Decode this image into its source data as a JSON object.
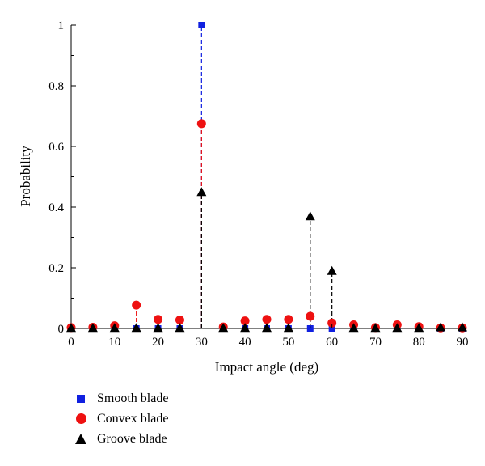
{
  "chart_data": {
    "type": "scatter",
    "xlabel": "Impact angle (deg)",
    "ylabel": "Probability",
    "xlim": [
      0,
      90
    ],
    "ylim": [
      0,
      1
    ],
    "x_ticks": [
      "0",
      "10",
      "20",
      "30",
      "40",
      "50",
      "60",
      "70",
      "80",
      "90"
    ],
    "y_ticks": [
      "0",
      "0.2",
      "0.4",
      "0.6",
      "0.8",
      "1"
    ],
    "grid": false,
    "legend_position": "bottom-left, below plot",
    "series": [
      {
        "name": "Smooth blade",
        "marker": "square",
        "color": "#1020e0",
        "x": [
          0,
          5,
          10,
          15,
          20,
          25,
          30,
          35,
          40,
          45,
          50,
          55,
          60,
          65,
          70,
          75,
          80,
          85,
          90
        ],
        "y": [
          0,
          0,
          0,
          0,
          0,
          0,
          1.0,
          0,
          0,
          0,
          0,
          0,
          0,
          0,
          0,
          0,
          0,
          0,
          0
        ]
      },
      {
        "name": "Convex blade",
        "marker": "circle",
        "color": "#ee1111",
        "x": [
          0,
          5,
          10,
          15,
          20,
          25,
          30,
          35,
          40,
          45,
          50,
          55,
          60,
          65,
          70,
          75,
          80,
          85,
          90
        ],
        "y": [
          0.003,
          0.004,
          0.009,
          0.077,
          0.03,
          0.028,
          0.675,
          0.005,
          0.025,
          0.03,
          0.03,
          0.04,
          0.018,
          0.012,
          0.003,
          0.012,
          0.006,
          0.002,
          0.002
        ]
      },
      {
        "name": "Groove blade",
        "marker": "triangle",
        "color": "#000000",
        "x": [
          0,
          5,
          10,
          15,
          20,
          25,
          30,
          35,
          40,
          45,
          50,
          55,
          60,
          65,
          70,
          75,
          80,
          85,
          90
        ],
        "y": [
          0.002,
          0.002,
          0.002,
          0.002,
          0.002,
          0.002,
          0.45,
          0.002,
          0.002,
          0.002,
          0.002,
          0.37,
          0.19,
          0.002,
          0.002,
          0.002,
          0.002,
          0.004,
          0.004
        ]
      }
    ]
  }
}
